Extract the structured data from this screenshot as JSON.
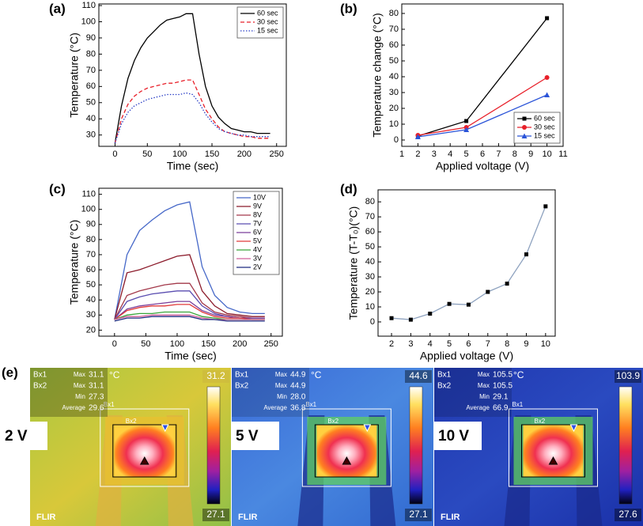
{
  "chart_data": [
    {
      "type": "line",
      "label": "(a)",
      "xlabel": "Time (sec)",
      "ylabel": "Temperature (°C)",
      "x": [
        0,
        10,
        20,
        30,
        40,
        50,
        60,
        70,
        80,
        90,
        100,
        110,
        120,
        130,
        140,
        150,
        160,
        170,
        180,
        190,
        200,
        210,
        220,
        230,
        240
      ],
      "xlim": [
        -25,
        265
      ],
      "xticks": [
        0,
        50,
        100,
        150,
        200,
        250
      ],
      "ylim": [
        23,
        111
      ],
      "yticks": [
        30,
        40,
        50,
        60,
        70,
        80,
        90,
        100,
        110
      ],
      "legend": "top-right",
      "series": [
        {
          "name": "60 sec",
          "color": "#000000",
          "dash": "solid",
          "values": [
            25,
            48,
            65,
            76,
            84,
            90,
            94,
            98,
            101,
            102,
            103,
            105,
            105,
            80,
            60,
            48,
            41,
            37,
            34,
            33,
            32,
            32,
            31,
            31,
            31
          ]
        },
        {
          "name": "30 sec",
          "color": "#e8202a",
          "dash": "dashed",
          "values": [
            25,
            40,
            49,
            54,
            57,
            59,
            60,
            61,
            62,
            62,
            63,
            64,
            64,
            55,
            46,
            40,
            35,
            32,
            31,
            30,
            29,
            29,
            28,
            28,
            28
          ]
        },
        {
          "name": "15 sec",
          "color": "#2b3fc6",
          "dash": "dotted",
          "values": [
            25,
            37,
            44,
            48,
            50,
            52,
            53,
            54,
            55,
            55,
            55,
            56,
            55,
            50,
            43,
            38,
            34,
            32,
            31,
            30,
            30,
            29,
            29,
            29,
            29
          ]
        }
      ]
    },
    {
      "type": "line",
      "label": "(b)",
      "xlabel": "Applied voltage (V)",
      "ylabel": "Temperature change (°C)",
      "x": [
        2,
        5,
        10
      ],
      "xlim": [
        1,
        11
      ],
      "xticks": [
        1,
        2,
        3,
        4,
        5,
        6,
        7,
        8,
        9,
        10,
        11
      ],
      "ylim": [
        -4,
        86
      ],
      "yticks": [
        0,
        10,
        20,
        30,
        40,
        50,
        60,
        70,
        80
      ],
      "legend": "bottom-right",
      "series": [
        {
          "name": "60 sec",
          "color": "#000000",
          "marker": "square",
          "values": [
            2.5,
            12,
            77
          ]
        },
        {
          "name": "30 sec",
          "color": "#e8202a",
          "marker": "circle",
          "values": [
            3,
            8,
            39.5
          ]
        },
        {
          "name": "15 sec",
          "color": "#2b54d8",
          "marker": "triangle",
          "values": [
            2,
            6.5,
            28.5
          ]
        }
      ]
    },
    {
      "type": "line",
      "label": "(c)",
      "xlabel": "Time (sec)",
      "ylabel": "Temperature (°C)",
      "x": [
        0,
        20,
        40,
        60,
        80,
        100,
        120,
        140,
        160,
        180,
        200,
        220,
        240
      ],
      "xlim": [
        -25,
        268
      ],
      "xticks": [
        0,
        50,
        100,
        150,
        200,
        250
      ],
      "ylim": [
        16,
        114
      ],
      "yticks": [
        20,
        30,
        40,
        50,
        60,
        70,
        80,
        90,
        100,
        110
      ],
      "legend": "top-right",
      "series": [
        {
          "name": "10V",
          "color": "#4668c8",
          "values": [
            27,
            70,
            86,
            93,
            99,
            103,
            105,
            62,
            43,
            35,
            32,
            31,
            31
          ]
        },
        {
          "name": "9V",
          "color": "#8b1a2a",
          "values": [
            27,
            58,
            60,
            63,
            66,
            69,
            70,
            46,
            36,
            31,
            30,
            29,
            29
          ]
        },
        {
          "name": "8V",
          "color": "#a3384a",
          "values": [
            27,
            43,
            46,
            48,
            50,
            51,
            51,
            38,
            32,
            30,
            29,
            28,
            28
          ]
        },
        {
          "name": "7V",
          "color": "#5a4db0",
          "values": [
            27,
            39,
            42,
            44,
            45,
            46,
            46,
            36,
            31,
            29,
            28,
            28,
            28
          ]
        },
        {
          "name": "6V",
          "color": "#7a3e9a",
          "values": [
            27,
            34,
            36,
            37,
            38,
            39,
            39,
            33,
            30,
            29,
            28,
            28,
            28
          ]
        },
        {
          "name": "5V",
          "color": "#e03a3a",
          "values": [
            27,
            33,
            35,
            36,
            36,
            37,
            37,
            32,
            29,
            28,
            28,
            27,
            27
          ]
        },
        {
          "name": "4V",
          "color": "#3aa43a",
          "values": [
            27,
            30,
            31,
            31,
            32,
            32,
            32,
            29,
            28,
            27,
            27,
            27,
            27
          ]
        },
        {
          "name": "3V",
          "color": "#d0609a",
          "values": [
            27,
            29,
            29,
            30,
            30,
            30,
            30,
            28,
            27,
            27,
            27,
            27,
            27
          ]
        },
        {
          "name": "2V",
          "color": "#1e2a80",
          "values": [
            26,
            28,
            28,
            29,
            29,
            29,
            29,
            27,
            27,
            26,
            26,
            26,
            26
          ]
        }
      ]
    },
    {
      "type": "line",
      "label": "(d)",
      "xlabel": "Applied voltage (V)",
      "ylabel": "Temperature (T-T₀)(°C)",
      "x": [
        2,
        3,
        4,
        5,
        6,
        7,
        8,
        9,
        10
      ],
      "xlim": [
        1.3,
        10.5
      ],
      "xticks": [
        2,
        3,
        4,
        5,
        6,
        7,
        8,
        9,
        10
      ],
      "ylim": [
        -9.5,
        88
      ],
      "yticks": [
        0,
        10,
        20,
        30,
        40,
        50,
        60,
        70,
        80
      ],
      "series": [
        {
          "color": "#8ea2bf",
          "marker": "square",
          "marker_color": "#000000",
          "values": [
            2.5,
            1.5,
            5.5,
            12,
            11.5,
            20,
            25.5,
            45,
            77
          ]
        }
      ]
    }
  ],
  "thermal": {
    "label": "(e)",
    "images": [
      {
        "label": "2 V",
        "unit": "°C",
        "stats": [
          {
            "box": "Bx1",
            "name": "Max",
            "value": "31.1"
          },
          {
            "box": "Bx2",
            "name": "Max",
            "value": "31.1"
          },
          {
            "name": "Min",
            "value": "27.3"
          },
          {
            "name": "Average",
            "value": "29.6"
          }
        ],
        "scale_max": "31.2",
        "scale_min": "27.1",
        "box_labels": [
          "Bx1",
          "Bx2"
        ],
        "brand": "FLIR"
      },
      {
        "label": "5 V",
        "unit": "°C",
        "stats": [
          {
            "box": "Bx1",
            "name": "Max",
            "value": "44.9"
          },
          {
            "box": "Bx2",
            "name": "Max",
            "value": "44.9"
          },
          {
            "name": "Min",
            "value": "28.0"
          },
          {
            "name": "Average",
            "value": "36.8"
          }
        ],
        "scale_max": "44.6",
        "scale_min": "27.1",
        "box_labels": [
          "Bx1",
          "Bx2"
        ],
        "brand": "FLIR"
      },
      {
        "label": "10 V",
        "unit": "°C",
        "stats": [
          {
            "box": "Bx1",
            "name": "Max",
            "value": "105.5"
          },
          {
            "box": "Bx2",
            "name": "Max",
            "value": "105.5"
          },
          {
            "name": "Min",
            "value": "29.1"
          },
          {
            "name": "Average",
            "value": "66.9"
          }
        ],
        "scale_max": "103.9",
        "scale_min": "27.6",
        "box_labels": [
          "Bx1",
          "Bx2"
        ],
        "brand": "FLIR"
      }
    ]
  }
}
